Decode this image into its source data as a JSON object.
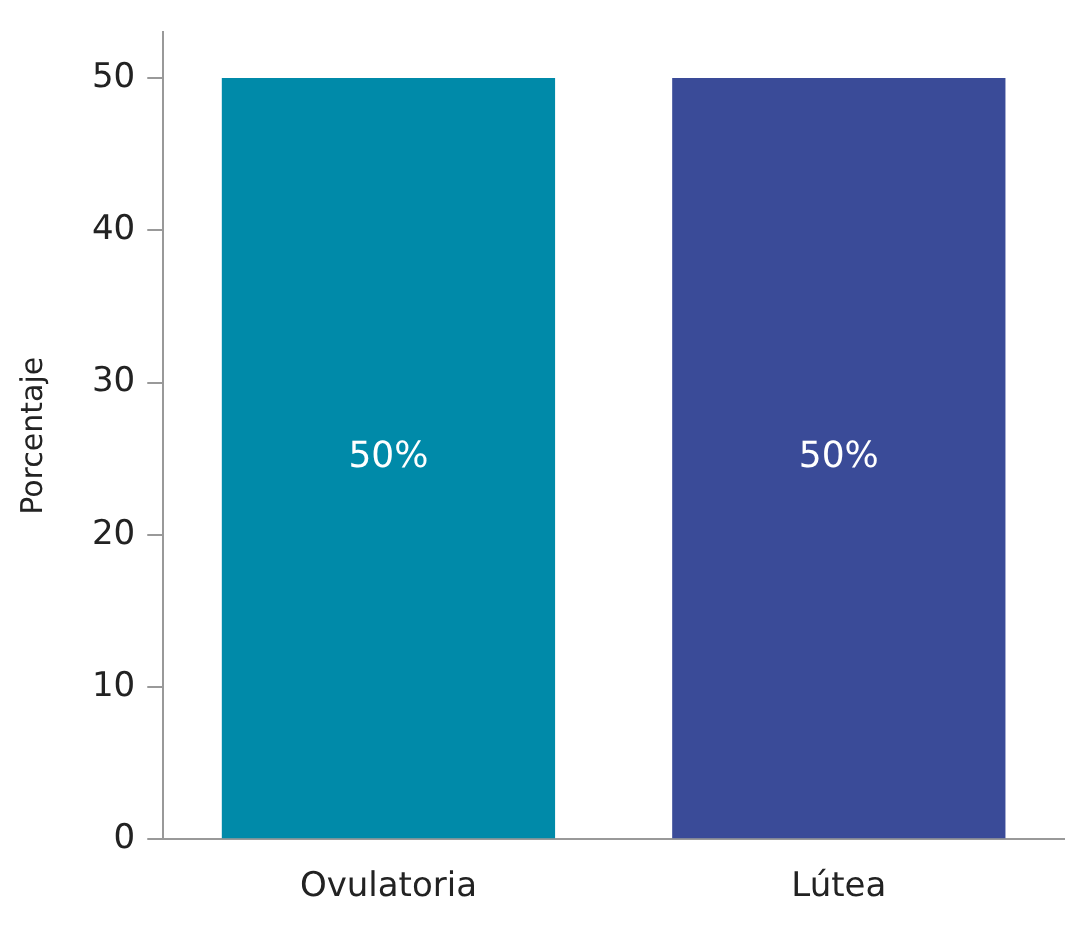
{
  "chart_data": {
    "type": "bar",
    "ylabel": "Porcentaje",
    "categories": [
      "Ovulatoria",
      "Lútea"
    ],
    "values": [
      50,
      50
    ],
    "colors": [
      "#008aa9",
      "#3a4b98"
    ],
    "value_labels": [
      "50%",
      "50%"
    ],
    "ylim": [
      0,
      53
    ],
    "yticks": [
      0,
      10,
      20,
      30,
      40,
      50
    ],
    "grid": false,
    "legend": false
  }
}
